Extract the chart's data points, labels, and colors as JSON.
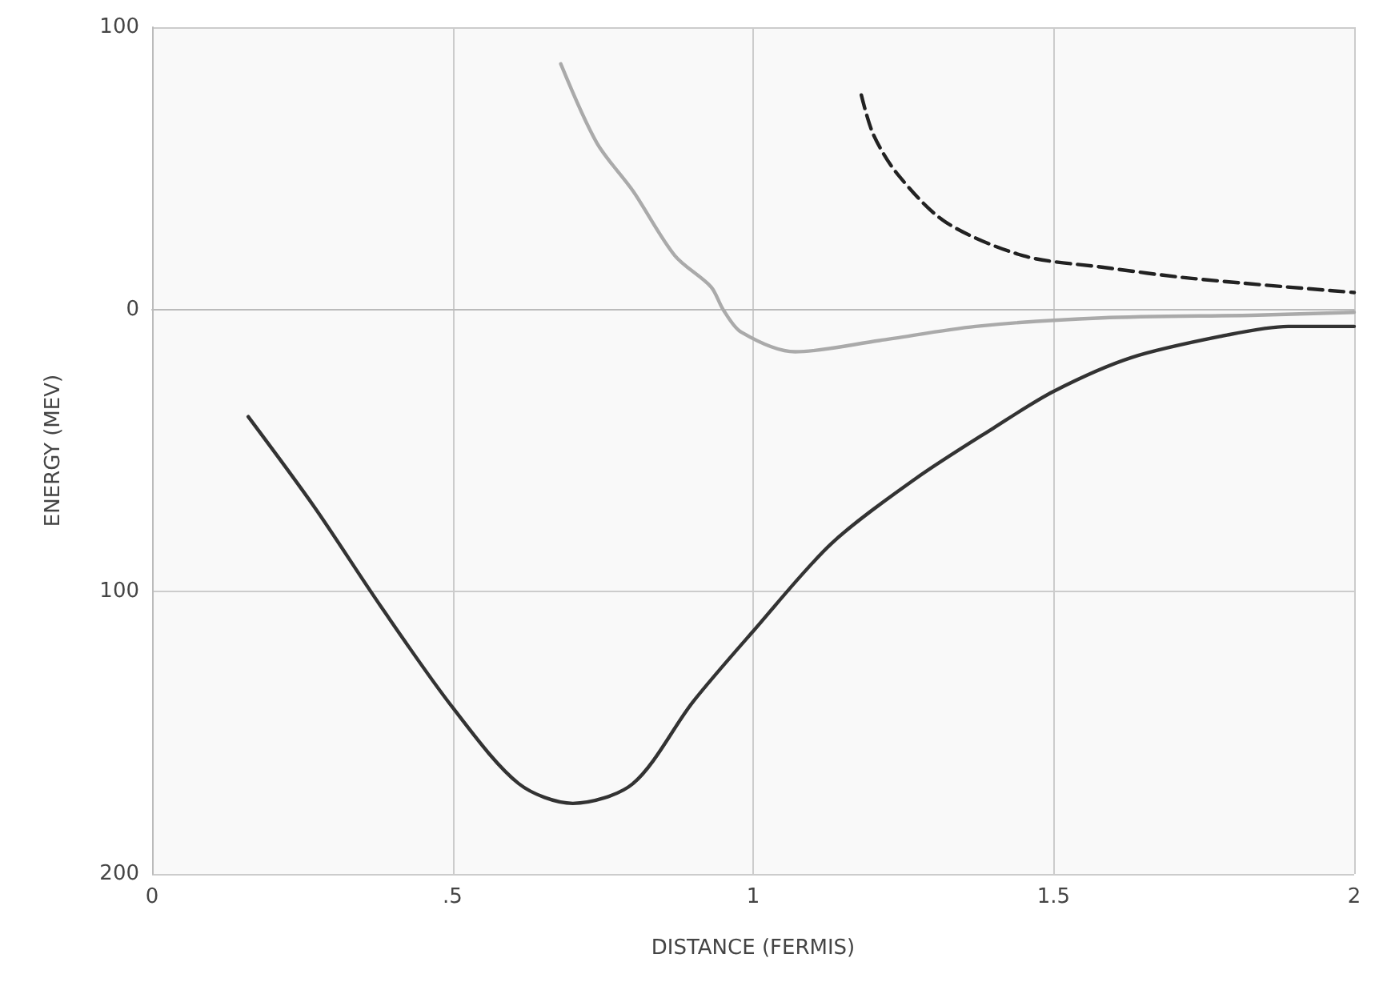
{
  "chart_data": {
    "type": "line",
    "xlabel": "DISTANCE (FERMIS)",
    "ylabel": "ENERGY (MEV)",
    "xlim": [
      0,
      2
    ],
    "xticks": [
      0,
      {
        "value": 0.5,
        "label": ".5"
      },
      1,
      1.5,
      2
    ],
    "ylim": [
      -200,
      100
    ],
    "yticks": [
      {
        "value": -200,
        "label": "200"
      },
      {
        "value": -100,
        "label": "100"
      },
      0,
      100
    ],
    "grid": true,
    "marker": "none",
    "series": [
      {
        "color": "#333333",
        "line_style": "solid",
        "x": [
          0.16,
          0.27,
          0.38,
          0.5,
          0.61,
          0.7,
          0.8,
          0.9,
          1.0,
          1.13,
          1.27,
          1.4,
          1.5,
          1.63,
          1.79,
          1.89,
          2.0
        ],
        "values": [
          -38,
          -70,
          -105,
          -141,
          -168,
          -175,
          -168,
          -139,
          -114,
          -83,
          -60,
          -42,
          -29,
          -17,
          -9,
          -6,
          -6
        ]
      },
      {
        "color": "#aaaaaa",
        "line_style": "solid",
        "x": [
          0.68,
          0.74,
          0.8,
          0.87,
          0.93,
          0.95,
          0.98,
          1.07,
          1.21,
          1.37,
          1.58,
          1.84,
          2.0
        ],
        "values": [
          87,
          59,
          42,
          19,
          8,
          0,
          -8,
          -15,
          -11,
          -6,
          -3,
          -2,
          -1
        ]
      },
      {
        "color": "#222222",
        "line_style": "dashed",
        "x": [
          1.18,
          1.2,
          1.24,
          1.32,
          1.45,
          1.58,
          1.73,
          2.0
        ],
        "values": [
          76,
          62,
          48,
          31,
          19,
          15,
          11,
          6
        ]
      }
    ]
  }
}
